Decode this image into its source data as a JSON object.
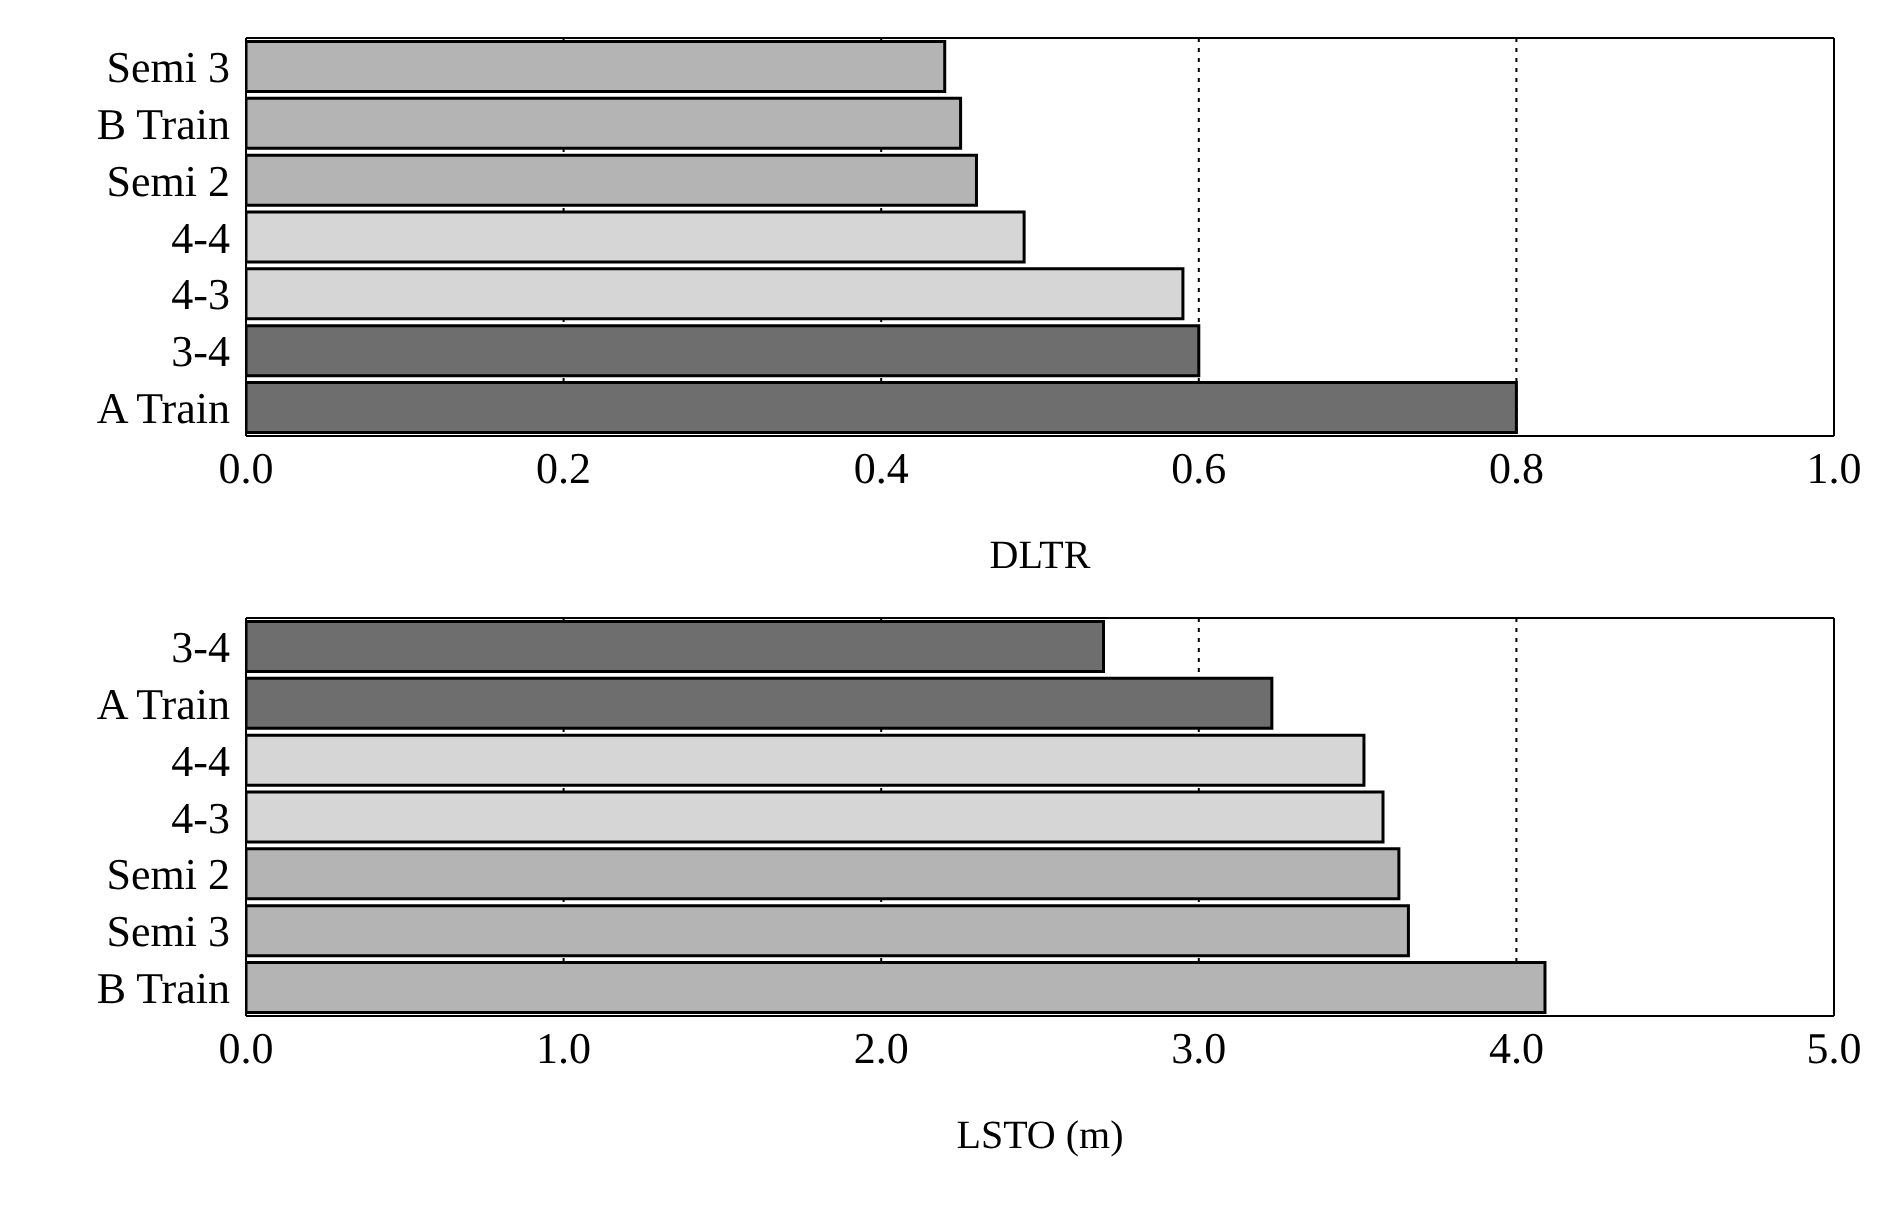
{
  "chart_data": [
    {
      "type": "bar",
      "orientation": "horizontal",
      "xlabel": "DLTR",
      "categories": [
        "Semi 3",
        "B Train",
        "Semi 2",
        "4-4",
        "4-3",
        "3-4",
        "A Train"
      ],
      "values": [
        0.44,
        0.45,
        0.46,
        0.49,
        0.59,
        0.6,
        0.8
      ],
      "colors": [
        "#b4b4b4",
        "#b4b4b4",
        "#b4b4b4",
        "#d6d6d6",
        "#d6d6d6",
        "#6e6e6e",
        "#6e6e6e"
      ],
      "xlim": [
        0,
        1
      ],
      "xticks": [
        {
          "value": 0,
          "label": "0.0"
        },
        {
          "value": 0.2,
          "label": "0.2"
        },
        {
          "value": 0.4,
          "label": "0.4"
        },
        {
          "value": 0.6,
          "label": "0.6"
        },
        {
          "value": 0.8,
          "label": "0.8"
        },
        {
          "value": 1,
          "label": "1.0"
        }
      ],
      "grid": "x"
    },
    {
      "type": "bar",
      "orientation": "horizontal",
      "xlabel": "LSTO (m)",
      "categories": [
        "3-4",
        "A Train",
        "4-4",
        "4-3",
        "Semi 2",
        "Semi 3",
        "B Train"
      ],
      "values": [
        2.7,
        3.23,
        3.52,
        3.58,
        3.63,
        3.66,
        4.09
      ],
      "colors": [
        "#6e6e6e",
        "#6e6e6e",
        "#d6d6d6",
        "#d6d6d6",
        "#b4b4b4",
        "#b4b4b4",
        "#b4b4b4"
      ],
      "xlim": [
        0,
        5
      ],
      "xticks": [
        {
          "value": 0,
          "label": "0.0"
        },
        {
          "value": 1,
          "label": "1.0"
        },
        {
          "value": 2,
          "label": "2.0"
        },
        {
          "value": 3,
          "label": "3.0"
        },
        {
          "value": 4,
          "label": "4.0"
        },
        {
          "value": 5,
          "label": "5.0"
        }
      ],
      "grid": "x"
    }
  ]
}
